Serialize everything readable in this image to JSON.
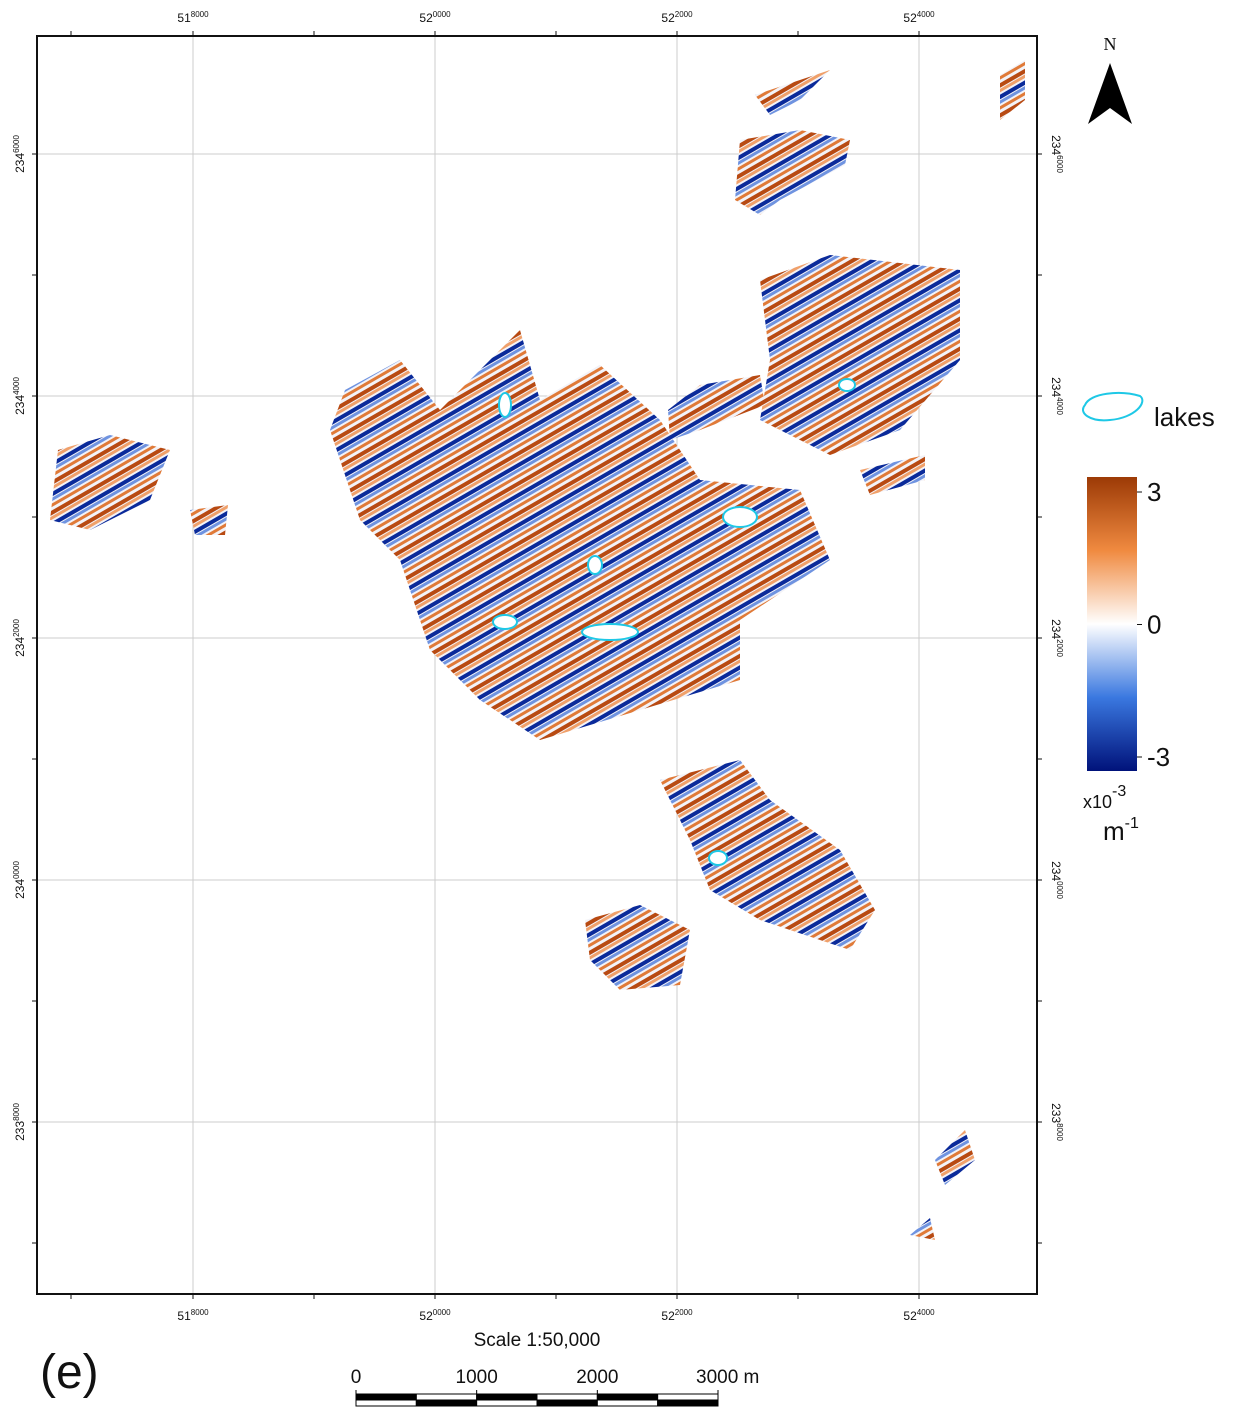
{
  "panel_label": "(e)",
  "north_label": "N",
  "x_labels": [
    {
      "main": "51",
      "sup": "8000"
    },
    {
      "main": "52",
      "sup": "0000"
    },
    {
      "main": "52",
      "sup": "2000"
    },
    {
      "main": "52",
      "sup": "4000"
    }
  ],
  "y_labels": [
    {
      "main": "234",
      "sup": "6000"
    },
    {
      "main": "234",
      "sup": "4000"
    },
    {
      "main": "234",
      "sup": "2000"
    },
    {
      "main": "234",
      "sup": "0000"
    },
    {
      "main": "233",
      "sup": "8000"
    }
  ],
  "legend": {
    "lakes": "lakes"
  },
  "colorbar": {
    "lim": [
      -3,
      3
    ],
    "ticks": [
      3,
      0,
      -3
    ],
    "unit_prefix": "x10",
    "unit_exp": "-3",
    "unit": "m",
    "unit_unit_exp": "-1"
  },
  "scale": {
    "title": "Scale 1:50,000",
    "lim": [
      0,
      3000
    ],
    "ticks": [
      0,
      1000,
      2000,
      {
        "value": 3000,
        "label": "3000 m"
      }
    ]
  }
}
